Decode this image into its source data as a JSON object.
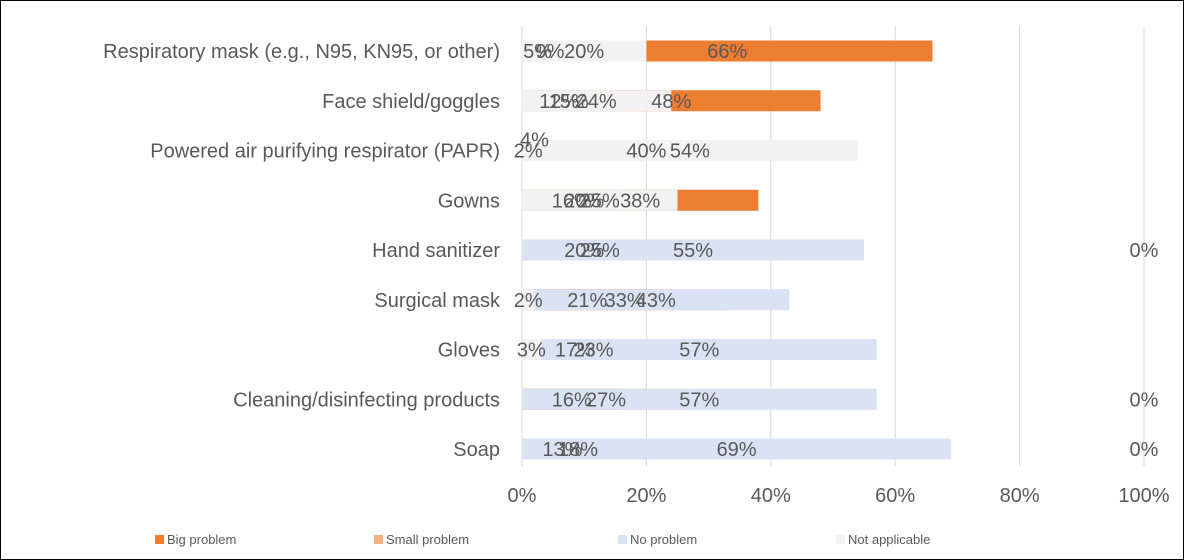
{
  "chart_data": {
    "type": "bar",
    "orientation": "horizontal",
    "stacked": true,
    "categories": [
      "Respiratory mask (e.g., N95, KN95, or other)",
      "Face shield/goggles",
      "Powered air purifying respirator (PAPR)",
      "Gowns",
      "Hand sanitizer",
      "Surgical mask",
      "Gloves",
      "Cleaning/disinfecting products",
      "Soap"
    ],
    "series": [
      {
        "name": "Big problem",
        "color": "#ED7D31",
        "values": [
          66,
          48,
          40,
          38,
          25,
          21,
          17,
          16,
          13
        ]
      },
      {
        "name": "Small problem",
        "color": "#F4B183",
        "values": [
          5,
          12,
          2,
          20,
          20,
          33,
          23,
          27,
          18
        ]
      },
      {
        "name": "No problem",
        "color": "#DAE3F3",
        "values": [
          9,
          15,
          4,
          16,
          55,
          43,
          57,
          57,
          69
        ]
      },
      {
        "name": "Not applicable",
        "color": "#F2F2F2",
        "values": [
          20,
          24,
          54,
          25,
          0,
          2,
          3,
          0,
          0
        ]
      }
    ],
    "x_ticks": [
      "0%",
      "20%",
      "40%",
      "60%",
      "80%",
      "100%"
    ],
    "xlim": [
      0,
      100
    ],
    "grid": true,
    "legend_position": "bottom"
  }
}
